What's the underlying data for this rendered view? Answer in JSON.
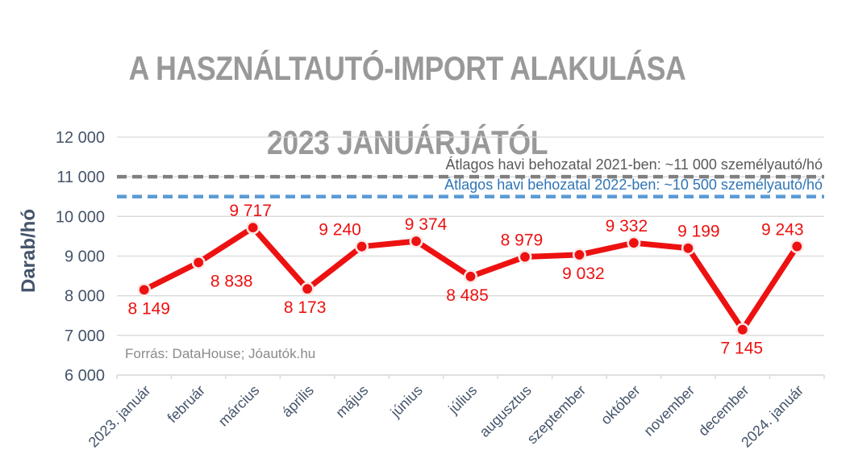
{
  "title": {
    "line1": "A HASZNÁLTAUTÓ-IMPORT ALAKULÁSA",
    "line2": "2023 JANUÁRJÁTÓL",
    "color": "#999999"
  },
  "source": "Forrás: DataHouse; Jóautók.hu",
  "y_axis": {
    "label": "Darab/hó",
    "ticks": [
      {
        "label": "12 000",
        "value": 12000
      },
      {
        "label": "11 000",
        "value": 11000
      },
      {
        "label": "10 000",
        "value": 10000
      },
      {
        "label": "9 000",
        "value": 9000
      },
      {
        "label": "8 000",
        "value": 8000
      },
      {
        "label": "7 000",
        "value": 7000
      },
      {
        "label": "6 000",
        "value": 6000
      }
    ]
  },
  "reference_lines": [
    {
      "label": "Átlagos havi behozatal 2021-ben: ~11 000 személyautó/hó",
      "value": 11000,
      "line_color": "#7F7F7F",
      "text_color": "#595959"
    },
    {
      "label": "Átlagos havi behozatal 2022-ben: ~10 500 személyautó/hó",
      "value": 10500,
      "line_color": "#5B9BD5",
      "text_color": "#2E75B6"
    }
  ],
  "chart_data": {
    "type": "line",
    "title": "A HASZNÁLTAUTÓ-IMPORT ALAKULÁSA 2023 JANUÁRJÁTÓL",
    "xlabel": "",
    "ylabel": "Darab/hó",
    "ylim": [
      6000,
      12000
    ],
    "grid": true,
    "legend_position": "none",
    "categories": [
      "2023. január",
      "február",
      "március",
      "április",
      "május",
      "június",
      "július",
      "augusztus",
      "szeptember",
      "október",
      "november",
      "december",
      "2024. január"
    ],
    "values": [
      8149,
      8838,
      9717,
      8173,
      9240,
      9374,
      8485,
      8979,
      9032,
      9332,
      9199,
      7145,
      9243
    ],
    "value_labels": [
      "8 149",
      "8 838",
      "9 717",
      "8 173",
      "9 240",
      "9 374",
      "8 485",
      "8 979",
      "9 032",
      "9 332",
      "9 199",
      "7 145",
      "9 243"
    ],
    "label_placement": [
      "below",
      "below",
      "above",
      "below",
      "above",
      "above",
      "below",
      "above",
      "below",
      "above",
      "above",
      "below",
      "above"
    ],
    "label_dx": [
      6,
      41,
      -3,
      -3,
      -27,
      12,
      -4,
      -4,
      5,
      -9,
      13,
      -1,
      -18
    ],
    "series_color": "#ED1111",
    "marker_ring_color": "#FBE9E8",
    "grid_color": "#D9D9D9",
    "axis_text_color": "#44546A"
  }
}
